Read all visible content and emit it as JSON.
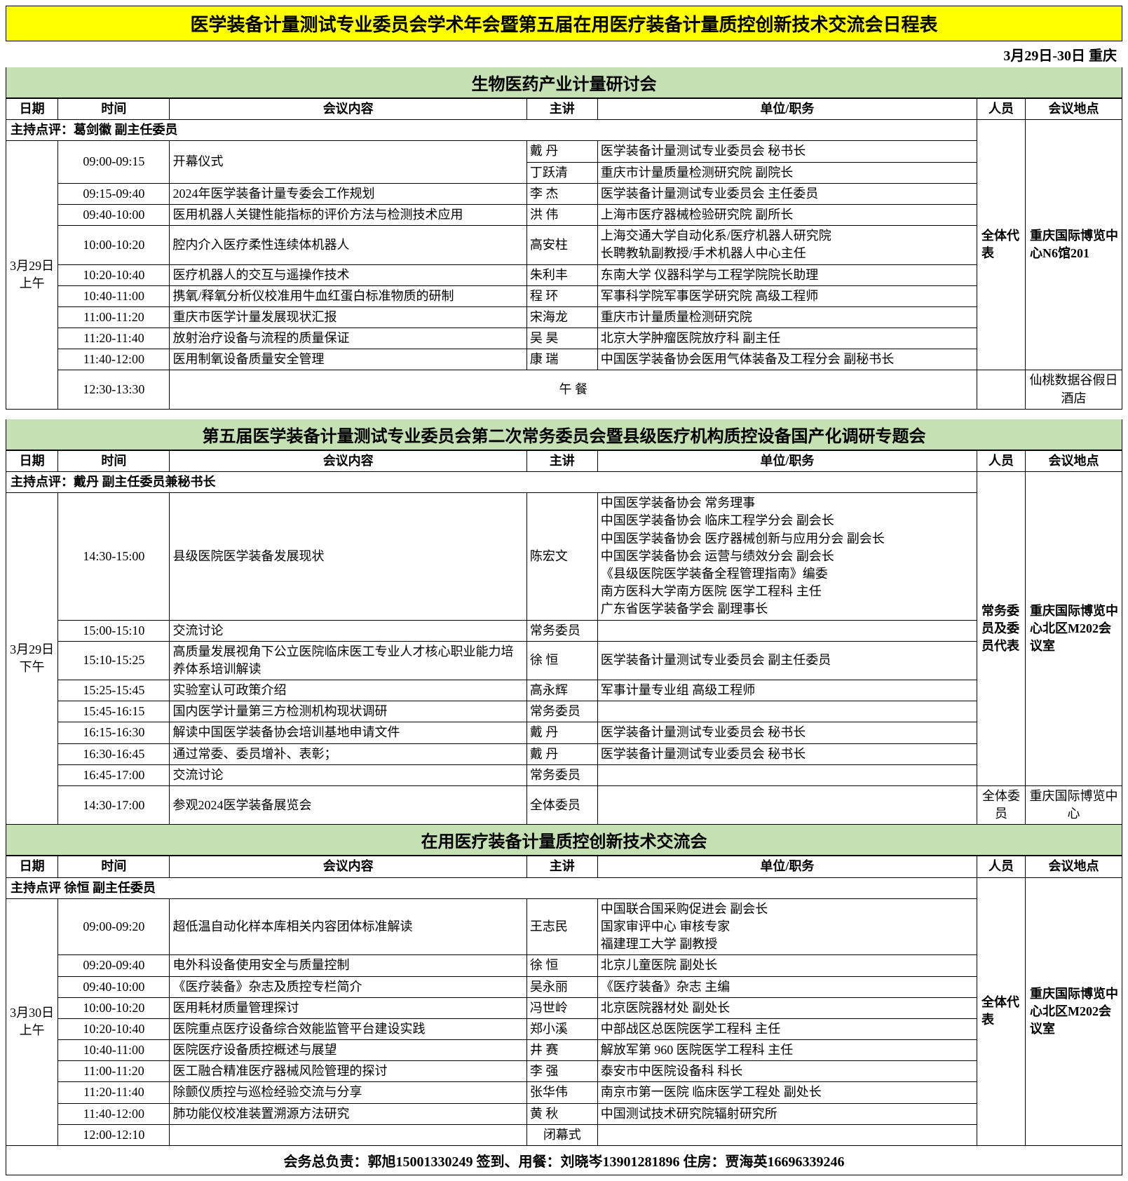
{
  "main_title": "医学装备计量测试专业委员会学术年会暨第五届在用医疗装备计量质控创新技术交流会日程表",
  "date_location": "3月29日-30日 重庆",
  "headers": {
    "date": "日期",
    "time": "时间",
    "content": "会议内容",
    "speaker": "主讲",
    "org": "单位/职务",
    "attend": "人员",
    "venue": "会议地点"
  },
  "section1": {
    "title": "生物医药产业计量研讨会",
    "host": "主持点评：葛剑徽  副主任委员",
    "date": "3月29日上午",
    "attend": "全体代表",
    "venue": "重庆国际博览中心N6馆201",
    "lunch_venue": "仙桃数据谷假日酒店",
    "lunch_label": "午 餐",
    "rows": [
      {
        "time": "09:00-09:15",
        "content": "开幕仪式",
        "speakers": [
          {
            "name": "戴  丹",
            "org": "医学装备计量测试专业委员会 秘书长"
          },
          {
            "name": "丁跃清",
            "org": "重庆市计量质量检测研究院 副院长"
          }
        ]
      },
      {
        "time": "09:15-09:40",
        "content": "2024年医学装备计量专委会工作规划",
        "speakers": [
          {
            "name": "李  杰",
            "org": "医学装备计量测试专业委员会 主任委员"
          }
        ]
      },
      {
        "time": "09:40-10:00",
        "content": "医用机器人关键性能指标的评价方法与检测技术应用",
        "speakers": [
          {
            "name": "洪  伟",
            "org": "上海市医疗器械检验研究院 副所长"
          }
        ]
      },
      {
        "time": "10:00-10:20",
        "content": "腔内介入医疗柔性连续体机器人",
        "speakers": [
          {
            "name": "高安柱",
            "org": "上海交通大学自动化系/医疗机器人研究院\n长聘教轨副教授/手术机器人中心主任"
          }
        ]
      },
      {
        "time": "10:20-10:40",
        "content": "医疗机器人的交互与遥操作技术",
        "speakers": [
          {
            "name": "朱利丰",
            "org": "东南大学 仪器科学与工程学院院长助理"
          }
        ]
      },
      {
        "time": "10:40-11:00",
        "content": "携氧/释氧分析仪校准用牛血红蛋白标准物质的研制",
        "speakers": [
          {
            "name": "程  环",
            "org": "军事科学院军事医学研究院 高级工程师"
          }
        ]
      },
      {
        "time": "11:00-11:20",
        "content": "重庆市医学计量发展现状汇报",
        "speakers": [
          {
            "name": "宋海龙",
            "org": "重庆市计量质量检测研究院"
          }
        ]
      },
      {
        "time": "11:20-11:40",
        "content": "放射治疗设备与流程的质量保证",
        "speakers": [
          {
            "name": "吴  昊",
            "org": "北京大学肿瘤医院放疗科 副主任"
          }
        ]
      },
      {
        "time": "11:40-12:00",
        "content": "医用制氧设备质量安全管理",
        "speakers": [
          {
            "name": "康  瑞",
            "org": "中国医学装备协会医用气体装备及工程分会 副秘书长"
          }
        ]
      }
    ],
    "lunch_time": "12:30-13:30"
  },
  "section2": {
    "title": "第五届医学装备计量测试专业委员会第二次常务委员会暨县级医疗机构质控设备国产化调研专题会",
    "host": "主持点评：戴丹  副主任委员兼秘书长",
    "date": "3月29日下午",
    "attend": "常务委员及委员代表",
    "venue": "重庆国际博览中心北区M202会议室",
    "last_attend": "全体委员",
    "last_venue": "重庆国际博览中心",
    "rows": [
      {
        "time": "14:30-15:00",
        "content": "县级医院医学装备发展现状",
        "speaker": "陈宏文",
        "org": "中国医学装备协会 常务理事\n中国医学装备协会 临床工程学分会 副会长\n中国医学装备协会 医疗器械创新与应用分会 副会长\n中国医学装备协会 运营与绩效分会 副会长\n《县级医院医学装备全程管理指南》编委\n南方医科大学南方医院 医学工程科 主任\n广东省医学装备学会 副理事长"
      },
      {
        "time": "15:00-15:10",
        "content": "交流讨论",
        "speaker": "常务委员",
        "org": ""
      },
      {
        "time": "15:10-15:25",
        "content": "高质量发展视角下公立医院临床医工专业人才核心职业能力培养体系培训解读",
        "speaker": "徐  恒",
        "org": "医学装备计量测试专业委员会 副主任委员"
      },
      {
        "time": "15:25-15:45",
        "content": "实验室认可政策介绍",
        "speaker": "高永辉",
        "org": "军事计量专业组 高级工程师"
      },
      {
        "time": "15:45-16:15",
        "content": "国内医学计量第三方检测机构现状调研",
        "speaker": "常务委员",
        "org": ""
      },
      {
        "time": "16:15-16:30",
        "content": "解读中国医学装备协会培训基地申请文件",
        "speaker": "戴  丹",
        "org": "医学装备计量测试专业委员会   秘书长"
      },
      {
        "time": "16:30-16:45",
        "content": "通过常委、委员增补、表彰；",
        "speaker": "戴  丹",
        "org": "医学装备计量测试专业委员会   秘书长"
      },
      {
        "time": "16:45-17:00",
        "content": "交流讨论",
        "speaker": "常务委员",
        "org": ""
      }
    ],
    "last_row": {
      "time": "14:30-17:00",
      "content": "参观2024医学装备展览会",
      "speaker": "全体委员",
      "org": ""
    }
  },
  "section3": {
    "title": "在用医疗装备计量质控创新技术交流会",
    "host": "主持点评  徐恒  副主任委员",
    "date": "3月30日上午",
    "attend": "全体代表",
    "venue": "重庆国际博览中心北区M202会议室",
    "rows": [
      {
        "time": "09:00-09:20",
        "content": "超低温自动化样本库相关内容团体标准解读",
        "speaker": "王志民",
        "org": "中国联合国采购促进会 副会长\n国家审评中心 审核专家\n福建理工大学 副教授"
      },
      {
        "time": "09:20-09:40",
        "content": "电外科设备使用安全与质量控制",
        "speaker": "徐  恒",
        "org": "北京儿童医院 副处长"
      },
      {
        "time": "09:40-10:00",
        "content": "《医疗装备》杂志及质控专栏简介",
        "speaker": "吴永丽",
        "org": "《医疗装备》杂志 主编"
      },
      {
        "time": "10:00-10:20",
        "content": "医用耗材质量管理探讨",
        "speaker": "冯世岭",
        "org": "北京医院器材处 副处长"
      },
      {
        "time": "10:20-10:40",
        "content": "医院重点医疗设备综合效能监管平台建设实践",
        "speaker": "郑小溪",
        "org": "中部战区总医院医学工程科 主任"
      },
      {
        "time": "10:40-11:00",
        "content": "医院医疗设备质控概述与展望",
        "speaker": "井  赛",
        "org": "解放军第 960 医院医学工程科 主任"
      },
      {
        "time": "11:00-11:20",
        "content": "医工融合精准医疗器械风险管理的探讨",
        "speaker": "李  强",
        "org": "泰安市中医院设备科 科长"
      },
      {
        "time": "11:20-11:40",
        "content": "除颤仪质控与巡检经验交流与分享",
        "speaker": "张华伟",
        "org": "南京市第一医院 临床医学工程处 副处长"
      },
      {
        "time": "11:40-12:00",
        "content": "肺功能仪校准装置溯源方法研究",
        "speaker": "黄  秋",
        "org": "中国测试技术研究院辐射研究所"
      },
      {
        "time": "12:00-12:10",
        "content": "",
        "speaker": "闭幕式",
        "org": ""
      }
    ]
  },
  "footer": "会务总负责：郭旭15001330249       签到、用餐：刘晓岑13901281896       住房：贾海英16696339246"
}
